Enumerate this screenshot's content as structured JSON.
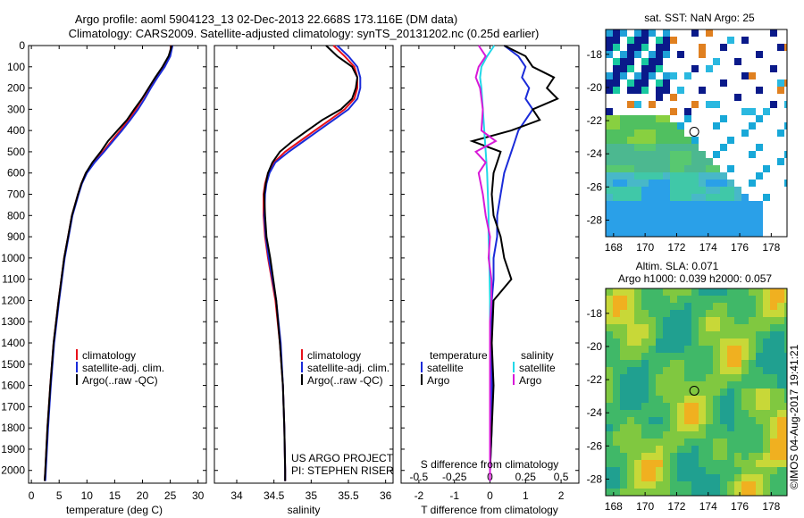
{
  "header": {
    "line1": "Argo profile: aoml 5904123_13 02-Dec-2013 22.668S 173.116E (DM data)",
    "line2": "Climatology: CARS2009. Satellite-adjusted climatology: synTS_20131202.nc (0.25d earlier)"
  },
  "colors": {
    "climatology": "#e8101a",
    "satellite": "#1a2bd9",
    "argo": "#000000",
    "s_sat": "#22d8e8",
    "s_argo": "#d81ad8"
  },
  "chart_data": [
    {
      "type": "line",
      "xlabel": "temperature (deg C)",
      "xlim": [
        -0.5,
        31.5
      ],
      "ylim": [
        0,
        2060
      ],
      "xticks": [
        0,
        5,
        10,
        15,
        20,
        25,
        30
      ],
      "yticks": [
        0,
        100,
        200,
        300,
        400,
        500,
        600,
        700,
        800,
        900,
        1000,
        1100,
        1200,
        1300,
        1400,
        1500,
        1600,
        1700,
        1800,
        1900,
        2000
      ],
      "legend": [
        "climatology",
        "satellite-adj. clim.",
        "Argo(..raw -QC)"
      ],
      "series": [
        {
          "name": "climatology",
          "color": "#e8101a",
          "depth": [
            0,
            50,
            100,
            150,
            200,
            250,
            300,
            350,
            400,
            450,
            500,
            550,
            600,
            650,
            700,
            800,
            900,
            1000,
            1200,
            1400,
            1600,
            1800,
            2000,
            2050
          ],
          "values": [
            25.2,
            24.8,
            23.8,
            22.5,
            21.2,
            20.0,
            18.8,
            17.5,
            16.0,
            14.4,
            12.9,
            11.2,
            9.8,
            9.0,
            8.4,
            7.3,
            6.6,
            5.9,
            4.9,
            4.0,
            3.4,
            2.9,
            2.5,
            2.4
          ]
        },
        {
          "name": "satellite-adj. clim.",
          "color": "#1a2bd9",
          "depth": [
            0,
            50,
            100,
            150,
            200,
            250,
            300,
            350,
            400,
            450,
            500,
            550,
            600,
            650,
            700,
            800,
            900,
            1000,
            1200,
            1400,
            1600,
            1800,
            2000,
            2050
          ],
          "values": [
            25.4,
            25.0,
            24.0,
            22.7,
            21.5,
            20.4,
            19.2,
            17.8,
            16.3,
            14.7,
            13.1,
            11.4,
            10.0,
            9.1,
            8.5,
            7.4,
            6.7,
            6.0,
            5.0,
            4.1,
            3.5,
            3.0,
            2.6,
            2.5
          ]
        },
        {
          "name": "Argo(..raw -QC)",
          "color": "#000000",
          "depth": [
            0,
            50,
            100,
            150,
            200,
            250,
            300,
            350,
            400,
            450,
            500,
            550,
            600,
            650,
            700,
            800,
            900,
            1000,
            1200,
            1400,
            1600,
            1800,
            2000,
            2050
          ],
          "values": [
            25.3,
            24.7,
            23.6,
            22.3,
            21.1,
            19.9,
            18.5,
            17.2,
            15.5,
            13.8,
            12.5,
            11.0,
            9.8,
            9.0,
            8.4,
            7.3,
            6.6,
            5.9,
            4.9,
            4.0,
            3.4,
            2.9,
            2.5,
            2.4
          ]
        }
      ]
    },
    {
      "type": "line",
      "xlabel": "salinity",
      "xlim": [
        33.7,
        36.1
      ],
      "ylim": [
        0,
        2060
      ],
      "xticks": [
        34,
        34.5,
        35,
        35.5,
        36
      ],
      "legend": [
        "climatology",
        "satellite-adj. clim.",
        "Argo(..raw -QC)"
      ],
      "series": [
        {
          "name": "climatology",
          "color": "#e8101a",
          "depth": [
            0,
            50,
            100,
            150,
            200,
            250,
            300,
            350,
            400,
            450,
            500,
            550,
            600,
            650,
            700,
            800,
            900,
            1000,
            1200,
            1400,
            1600,
            1800,
            2000,
            2050
          ],
          "values": [
            35.3,
            35.45,
            35.58,
            35.62,
            35.62,
            35.58,
            35.45,
            35.25,
            35.05,
            34.85,
            34.65,
            34.5,
            34.42,
            34.38,
            34.36,
            34.36,
            34.38,
            34.42,
            34.52,
            34.58,
            34.62,
            34.64,
            34.65,
            34.65
          ]
        },
        {
          "name": "satellite-adj. clim.",
          "color": "#1a2bd9",
          "depth": [
            0,
            50,
            100,
            150,
            200,
            250,
            300,
            350,
            400,
            450,
            500,
            550,
            600,
            650,
            700,
            800,
            900,
            1000,
            1200,
            1400,
            1600,
            1800,
            2000,
            2050
          ],
          "values": [
            35.35,
            35.5,
            35.62,
            35.66,
            35.66,
            35.62,
            35.5,
            35.3,
            35.1,
            34.9,
            34.7,
            34.52,
            34.44,
            34.4,
            34.38,
            34.37,
            34.39,
            34.43,
            34.53,
            34.59,
            34.62,
            34.64,
            34.65,
            34.65
          ]
        },
        {
          "name": "Argo(..raw -QC)",
          "color": "#000000",
          "depth": [
            0,
            50,
            100,
            150,
            200,
            250,
            300,
            350,
            400,
            450,
            500,
            550,
            600,
            650,
            700,
            800,
            900,
            1000,
            1200,
            1400,
            1600,
            1800,
            2000,
            2050
          ],
          "values": [
            35.2,
            35.35,
            35.55,
            35.62,
            35.6,
            35.55,
            35.4,
            35.15,
            34.95,
            34.75,
            34.58,
            34.48,
            34.42,
            34.39,
            34.37,
            34.38,
            34.4,
            34.45,
            34.53,
            34.58,
            34.62,
            34.64,
            34.65,
            34.65
          ]
        }
      ]
    },
    {
      "type": "line",
      "xlabel": "T difference from climatology",
      "xlabel_top": "S difference from climatology",
      "xlim": [
        -2.5,
        2.5
      ],
      "ylim": [
        0,
        2060
      ],
      "xticks": [
        -2,
        -1,
        0,
        1,
        2
      ],
      "xticks_top": [
        -0.5,
        -0.25,
        0,
        0.25,
        0.5
      ],
      "legend_t_title": "temperature",
      "legend_s_title": "salinity",
      "legend": [
        "satellite",
        "Argo",
        "satellite",
        "Argo"
      ],
      "series": [
        {
          "name": "satellite",
          "kind": "T",
          "color": "#1a2bd9",
          "depth": [
            0,
            50,
            100,
            150,
            200,
            250,
            300,
            350,
            400,
            450,
            500,
            550,
            600,
            700,
            800,
            900,
            1000,
            1100,
            1200,
            1400,
            1600,
            1800,
            2000,
            2050
          ],
          "values": [
            0.4,
            0.8,
            1.0,
            0.9,
            1.1,
            1.0,
            1.2,
            1.0,
            0.8,
            0.7,
            0.6,
            0.5,
            0.4,
            0.3,
            0.2,
            0.2,
            0.1,
            0.1,
            0.05,
            0.05,
            0.05,
            0.05,
            0.0,
            0.0
          ]
        },
        {
          "name": "Argo",
          "kind": "T",
          "color": "#000000",
          "depth": [
            0,
            50,
            100,
            150,
            200,
            250,
            300,
            350,
            400,
            450,
            500,
            550,
            600,
            700,
            800,
            900,
            1000,
            1100,
            1200,
            1400,
            1600,
            1800,
            2000,
            2050
          ],
          "values": [
            0.4,
            1.0,
            1.2,
            1.8,
            1.6,
            1.9,
            1.2,
            1.4,
            0.6,
            -0.5,
            0.3,
            0.2,
            0.1,
            0.05,
            0.1,
            0.3,
            0.4,
            0.6,
            0.1,
            0.05,
            0.1,
            0.05,
            0.0,
            0.0
          ]
        },
        {
          "name": "satellite",
          "kind": "S",
          "color": "#22d8e8",
          "depth": [
            0,
            50,
            100,
            150,
            200,
            300,
            400,
            500,
            600,
            700,
            800,
            900,
            1000,
            1200,
            1400,
            1600,
            1800,
            2000,
            2050
          ],
          "values": [
            0.03,
            -0.02,
            -0.06,
            -0.07,
            -0.06,
            -0.05,
            -0.04,
            -0.03,
            -0.02,
            -0.015,
            -0.01,
            -0.01,
            -0.005,
            0.0,
            0.0,
            0.0,
            0.0,
            0.0,
            0.0
          ]
        },
        {
          "name": "Argo",
          "kind": "S",
          "color": "#d81ad8",
          "depth": [
            0,
            50,
            100,
            150,
            200,
            300,
            400,
            450,
            500,
            550,
            600,
            700,
            800,
            900,
            1000,
            1100,
            1200,
            1300,
            1400,
            1600,
            1800,
            2000,
            2050
          ],
          "values": [
            -0.08,
            -0.03,
            -0.08,
            -0.1,
            -0.07,
            -0.05,
            -0.06,
            0.04,
            -0.1,
            -0.03,
            -0.08,
            -0.05,
            -0.03,
            0.0,
            -0.01,
            0.01,
            0.01,
            0.0,
            0.0,
            0.0,
            0.0,
            0.0,
            0.0
          ]
        }
      ]
    },
    {
      "type": "heatmap",
      "title": "sat. SST: NaN Argo: 25",
      "xlim": [
        167.5,
        179
      ],
      "ylim": [
        -29,
        -16.5
      ],
      "xticks": [
        168,
        170,
        172,
        174,
        176,
        178
      ],
      "yticks": [
        -18,
        -20,
        -22,
        -24,
        -26,
        -28
      ],
      "marker": {
        "lon": 173.116,
        "lat": -22.668
      }
    },
    {
      "type": "heatmap",
      "title_line1": "Altim. SLA: 0.071",
      "title_line2": "Argo h1000: 0.039 h2000: 0.057",
      "xlim": [
        167.5,
        179
      ],
      "ylim": [
        -29,
        -16.5
      ],
      "xticks": [
        168,
        170,
        172,
        174,
        176,
        178
      ],
      "yticks": [
        -18,
        -20,
        -22,
        -24,
        -26,
        -28
      ],
      "marker": {
        "lon": 173.116,
        "lat": -22.668
      }
    }
  ],
  "credits": {
    "project": "US ARGO PROJECT",
    "pi": "PI: STEPHEN RISER",
    "stamp": "©IMOS 04-Aug-2017 19:41:21"
  }
}
